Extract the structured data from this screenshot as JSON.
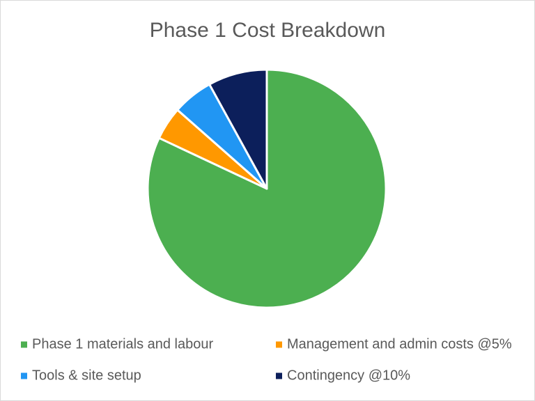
{
  "chart_data": {
    "type": "pie",
    "title": "Phase 1 Cost Breakdown",
    "categories": [
      "Phase 1 materials and labour",
      "Management and admin costs @5%",
      "Tools & site setup",
      "Contingency @10%"
    ],
    "values": [
      82,
      4.5,
      5.5,
      8
    ],
    "colors": [
      "#4caf50",
      "#ff9800",
      "#2196f3",
      "#0c1f5b"
    ],
    "legend": "bottom"
  }
}
